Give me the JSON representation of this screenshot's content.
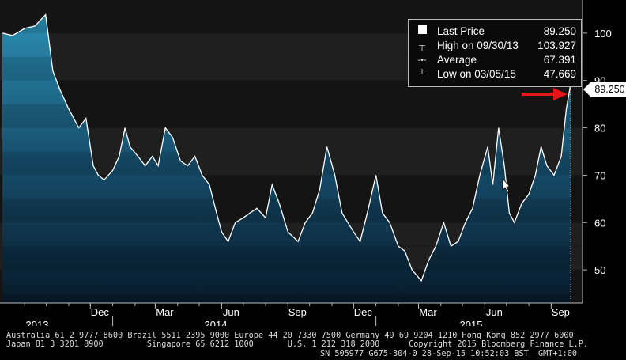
{
  "chart_data": {
    "type": "line",
    "series": [
      {
        "name": "Last Price"
      }
    ],
    "x_start": "2013-08-01",
    "x_end": "2015-09-28",
    "ylim": [
      43,
      107
    ],
    "y_ticks": [
      50,
      60,
      70,
      80,
      90,
      100
    ],
    "month_ticks": [
      "Dec",
      "Mar",
      "Jun",
      "Sep",
      "Dec",
      "Mar",
      "Jun",
      "Sep"
    ],
    "year_labels": [
      "2013",
      "2014",
      "2015"
    ],
    "points": [
      [
        "2013-08-01",
        100.0
      ],
      [
        "2013-08-15",
        99.5
      ],
      [
        "2013-09-01",
        101.0
      ],
      [
        "2013-09-15",
        101.5
      ],
      [
        "2013-09-30",
        103.9
      ],
      [
        "2013-10-10",
        92.0
      ],
      [
        "2013-10-20",
        88.0
      ],
      [
        "2013-11-01",
        84.0
      ],
      [
        "2013-11-15",
        80.0
      ],
      [
        "2013-11-25",
        82.0
      ],
      [
        "2013-12-05",
        72.0
      ],
      [
        "2013-12-12",
        70.0
      ],
      [
        "2013-12-20",
        69.0
      ],
      [
        "2014-01-01",
        71.0
      ],
      [
        "2014-01-10",
        74.0
      ],
      [
        "2014-01-18",
        80.0
      ],
      [
        "2014-01-25",
        76.0
      ],
      [
        "2014-02-05",
        74.0
      ],
      [
        "2014-02-15",
        72.0
      ],
      [
        "2014-02-25",
        74.0
      ],
      [
        "2014-03-05",
        72.0
      ],
      [
        "2014-03-15",
        80.0
      ],
      [
        "2014-03-25",
        78.0
      ],
      [
        "2014-04-05",
        73.0
      ],
      [
        "2014-04-15",
        72.0
      ],
      [
        "2014-04-25",
        74.0
      ],
      [
        "2014-05-05",
        70.0
      ],
      [
        "2014-05-15",
        68.0
      ],
      [
        "2014-05-25",
        62.0
      ],
      [
        "2014-06-01",
        58.0
      ],
      [
        "2014-06-10",
        56.0
      ],
      [
        "2014-06-20",
        60.0
      ],
      [
        "2014-07-01",
        61.0
      ],
      [
        "2014-07-10",
        62.0
      ],
      [
        "2014-07-20",
        63.0
      ],
      [
        "2014-08-01",
        61.0
      ],
      [
        "2014-08-10",
        68.0
      ],
      [
        "2014-08-20",
        64.0
      ],
      [
        "2014-09-01",
        58.0
      ],
      [
        "2014-09-15",
        56.0
      ],
      [
        "2014-09-25",
        60.0
      ],
      [
        "2014-10-05",
        62.0
      ],
      [
        "2014-10-15",
        67.0
      ],
      [
        "2014-10-25",
        76.0
      ],
      [
        "2014-11-05",
        70.0
      ],
      [
        "2014-11-15",
        62.0
      ],
      [
        "2014-12-01",
        58.0
      ],
      [
        "2014-12-10",
        56.0
      ],
      [
        "2014-12-20",
        62.0
      ],
      [
        "2015-01-01",
        70.0
      ],
      [
        "2015-01-10",
        62.0
      ],
      [
        "2015-01-20",
        60.0
      ],
      [
        "2015-02-01",
        55.0
      ],
      [
        "2015-02-10",
        54.0
      ],
      [
        "2015-02-20",
        50.0
      ],
      [
        "2015-03-05",
        47.7
      ],
      [
        "2015-03-15",
        52.0
      ],
      [
        "2015-03-25",
        55.0
      ],
      [
        "2015-04-05",
        60.0
      ],
      [
        "2015-04-15",
        55.0
      ],
      [
        "2015-04-25",
        56.0
      ],
      [
        "2015-05-05",
        60.0
      ],
      [
        "2015-05-15",
        63.0
      ],
      [
        "2015-05-25",
        70.0
      ],
      [
        "2015-06-05",
        76.0
      ],
      [
        "2015-06-12",
        68.0
      ],
      [
        "2015-06-20",
        80.0
      ],
      [
        "2015-06-28",
        72.0
      ],
      [
        "2015-07-05",
        62.0
      ],
      [
        "2015-07-12",
        60.0
      ],
      [
        "2015-07-22",
        64.0
      ],
      [
        "2015-08-01",
        66.0
      ],
      [
        "2015-08-10",
        70.0
      ],
      [
        "2015-08-18",
        76.0
      ],
      [
        "2015-08-26",
        72.0
      ],
      [
        "2015-09-05",
        70.0
      ],
      [
        "2015-09-15",
        74.0
      ],
      [
        "2015-09-22",
        84.0
      ],
      [
        "2015-09-28",
        89.25
      ]
    ]
  },
  "legend": {
    "last_price_label": "Last Price",
    "last_price_value": "89.250",
    "high_label": "High on 09/30/13",
    "high_value": "103.927",
    "average_label": "Average",
    "average_value": "67.391",
    "low_label": "Low on 03/05/15",
    "low_value": "47.669"
  },
  "last_value_marker": "89.250",
  "annotation_arrow_color": "#e8141c",
  "footer": {
    "line1": "Australia 61 2 9777 8600 Brazil 5511 2395 9000 Europe 44 20 7330 7500 Germany 49 69 9204 1210 Hong Kong 852 2977 6000",
    "line2": "Japan 81 3 3201 8900         Singapore 65 6212 1000       U.S. 1 212 318 2000      Copyright 2015 Bloomberg Finance L.P.",
    "line3": "SN 505977 G675-304-0 28-Sep-15 10:52:03 BST  GMT+1:00"
  }
}
